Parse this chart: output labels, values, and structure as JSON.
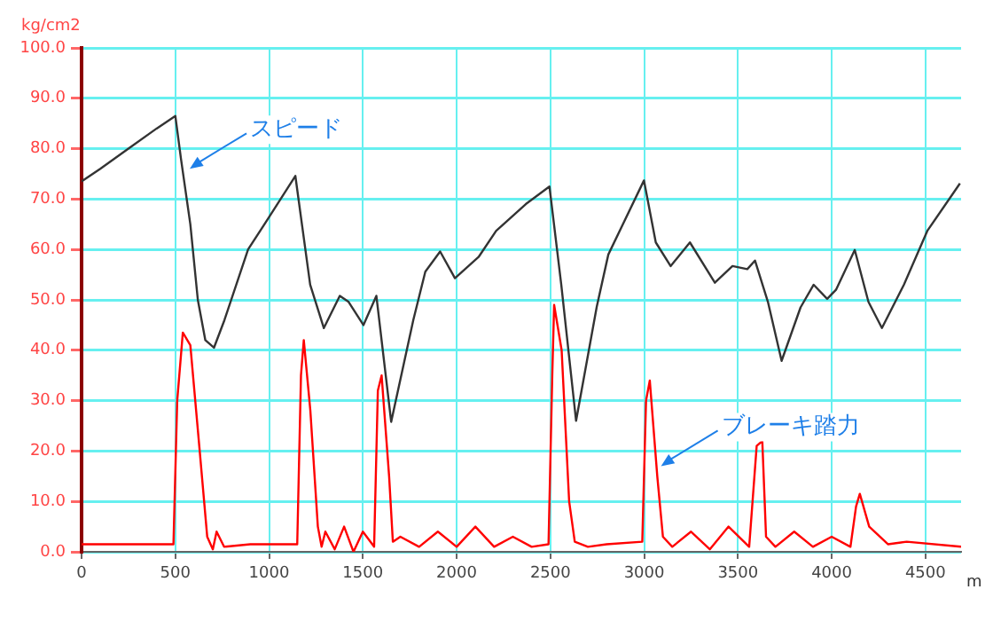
{
  "chart_data": {
    "type": "line",
    "xlabel": "m",
    "ylabel": "kg/cm2",
    "xlim": [
      0,
      4690
    ],
    "xticks": [
      0,
      500,
      1000,
      1500,
      2000,
      2500,
      3000,
      3500,
      4000,
      4500
    ],
    "ylim": [
      0,
      100
    ],
    "yticks": [
      {
        "value": 0,
        "label": "0.0"
      },
      {
        "value": 10,
        "label": "10.0"
      },
      {
        "value": 20,
        "label": "20.0"
      },
      {
        "value": 30,
        "label": "30.0"
      },
      {
        "value": 40,
        "label": "40.0"
      },
      {
        "value": 50,
        "label": "50.0"
      },
      {
        "value": 60,
        "label": "60.0"
      },
      {
        "value": 70,
        "label": "70.0"
      },
      {
        "value": 80,
        "label": "80.0"
      },
      {
        "value": 90,
        "label": "90.0"
      },
      {
        "value": 100,
        "label": "100.0"
      }
    ],
    "grid": true,
    "legend": false,
    "marker": "none",
    "line_style": "solid",
    "series": [
      {
        "color": "#333333",
        "x": [
          0,
          100,
          250,
          400,
          500,
          530,
          580,
          620,
          660,
          706,
          762,
          888,
          1010,
          1140,
          1219,
          1292,
          1377,
          1424,
          1503,
          1572,
          1651,
          1769,
          1833,
          1912,
          1991,
          2117,
          2211,
          2369,
          2495,
          2558,
          2637,
          2747,
          2809,
          2999,
          3062,
          3141,
          3244,
          3377,
          3471,
          3550,
          3591,
          3660,
          3733,
          3834,
          3904,
          3976,
          4023,
          4123,
          4196,
          4268,
          4385,
          4510,
          4684
        ],
        "values": [
          73.5,
          76,
          80,
          84,
          86.5,
          78,
          65,
          50,
          42,
          40.5,
          46,
          60,
          67,
          74.6,
          53,
          44.4,
          50.8,
          49.6,
          45,
          50.8,
          25.8,
          46,
          55.6,
          59.6,
          54.3,
          58.5,
          63.7,
          69,
          72.5,
          53,
          26,
          48.6,
          59,
          73.7,
          61.4,
          56.7,
          61.4,
          53.4,
          56.7,
          56.1,
          57.8,
          49.6,
          37.9,
          48.5,
          53,
          50.2,
          52,
          59.9,
          49.6,
          44.4,
          53,
          63.7,
          73.1
        ]
      },
      {
        "color": "#ff0000",
        "x": [
          0,
          490,
          510,
          540,
          580,
          630,
          670,
          700,
          720,
          760,
          900,
          1150,
          1170,
          1185,
          1220,
          1260,
          1280,
          1300,
          1350,
          1400,
          1450,
          1500,
          1560,
          1580,
          1600,
          1640,
          1660,
          1700,
          1800,
          1900,
          2000,
          2100,
          2200,
          2300,
          2400,
          2490,
          2510,
          2520,
          2560,
          2600,
          2630,
          2700,
          2800,
          2990,
          3010,
          3030,
          3070,
          3100,
          3150,
          3250,
          3350,
          3450,
          3560,
          3600,
          3630,
          3650,
          3700,
          3800,
          3900,
          4000,
          4100,
          4130,
          4150,
          4200,
          4300,
          4400,
          4690
        ],
        "values": [
          1.5,
          1.5,
          30,
          43.5,
          41,
          20,
          3,
          0.5,
          4,
          1,
          1.5,
          1.5,
          35,
          42,
          28,
          5,
          1,
          4,
          0.5,
          5,
          0,
          4,
          1,
          32,
          35,
          15,
          2,
          3,
          1,
          4,
          1,
          5,
          1,
          3,
          1,
          1.5,
          35,
          49,
          40,
          10,
          2,
          1,
          1.5,
          2,
          30,
          34,
          15,
          3,
          1,
          4,
          0.5,
          5,
          1,
          21,
          22,
          3,
          1,
          4,
          1,
          3,
          1,
          9,
          11.5,
          5,
          1.5,
          2,
          1
        ]
      }
    ],
    "annotations": [
      {
        "text": "スピード",
        "x": 577,
        "y": 76
      },
      {
        "text": "ブレーキ踏力",
        "x": 3090,
        "y": 17
      }
    ]
  }
}
